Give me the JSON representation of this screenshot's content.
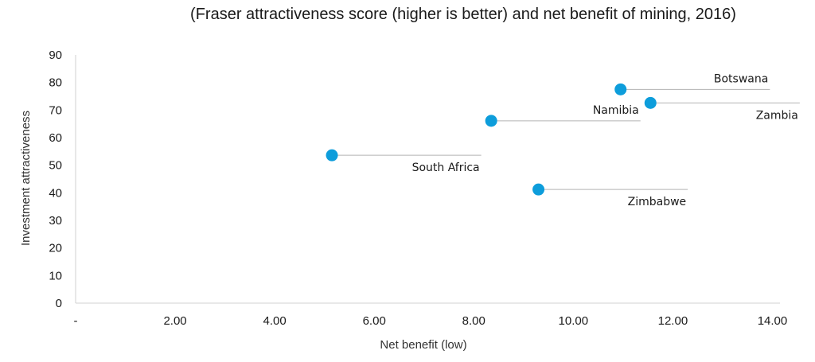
{
  "chart_data": {
    "type": "scatter",
    "title": "(Fraser attractiveness score (higher is better) and net benefit of mining, 2016)",
    "xlabel": "Net benefit (low)",
    "ylabel": "Investment attractiveness",
    "xlim": [
      0,
      15
    ],
    "ylim": [
      0,
      90
    ],
    "x_ticks": [
      "-",
      "2.00",
      "4.00",
      "6.00",
      "8.00",
      "10.00",
      "12.00",
      "14.00"
    ],
    "y_ticks": [
      "0",
      "10",
      "20",
      "30",
      "40",
      "50",
      "60",
      "70",
      "80",
      "90"
    ],
    "grid": false,
    "point_color": "#0d9ddb",
    "leader_color": "#b3b3b3",
    "points": [
      {
        "name": "South Africa",
        "x": 5.15,
        "y": 53.6,
        "label_side": "below"
      },
      {
        "name": "Namibia",
        "x": 8.35,
        "y": 66.1,
        "label_side": "above"
      },
      {
        "name": "Zimbabwe",
        "x": 9.3,
        "y": 41.2,
        "label_side": "below"
      },
      {
        "name": "Botswana",
        "x": 10.95,
        "y": 77.5,
        "label_side": "above"
      },
      {
        "name": "Zambia",
        "x": 11.55,
        "y": 72.6,
        "label_side": "below"
      }
    ]
  }
}
